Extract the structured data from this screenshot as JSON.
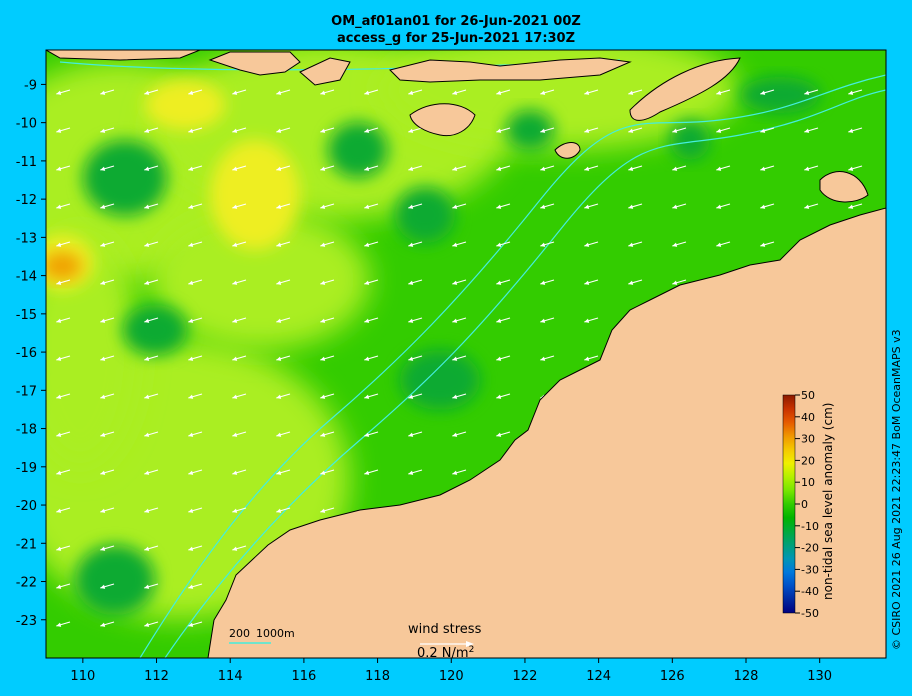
{
  "title": {
    "line1": "OM_af01an01 for 26-Jun-2021 00Z",
    "line2": "access_g for 25-Jun-2021 17:30Z"
  },
  "axes": {
    "x_ticks": [
      "110",
      "112",
      "114",
      "116",
      "118",
      "120",
      "122",
      "124",
      "126",
      "128",
      "130"
    ],
    "y_ticks": [
      "-9",
      "-10",
      "-11",
      "-12",
      "-13",
      "-14",
      "-15",
      "-16",
      "-17",
      "-18",
      "-19",
      "-20",
      "-21",
      "-22",
      "-23"
    ]
  },
  "map": {
    "lon_range": [
      109,
      131.8
    ],
    "lat_range": [
      -24,
      -8.1
    ],
    "colors": {
      "ocean_base": "#33cc00",
      "ocean_light": "#aaee22",
      "ocean_yellow": "#eeee22",
      "ocean_dark": "#11aa33",
      "land": "#f7c89a",
      "coast": "#000000",
      "bathymetry": "#44eedd",
      "arrows": "#ffffff"
    },
    "depth_legend": [
      "200",
      "1000m"
    ]
  },
  "wind_stress": {
    "label": "wind stress",
    "scale_label": "0.2 N/m",
    "superscript": "2"
  },
  "colorbar": {
    "label": "non-tidal sea level anomaly (cm)",
    "ticks": [
      "50",
      "40",
      "30",
      "20",
      "10",
      "0",
      "-10",
      "-20",
      "-30",
      "-40",
      "-50"
    ],
    "colors": [
      "#8b1a00",
      "#c83200",
      "#e65a00",
      "#f09600",
      "#f5c800",
      "#f0f000",
      "#b4f000",
      "#78e600",
      "#32cc00",
      "#00b400",
      "#00aa3c",
      "#00a078",
      "#0096b4",
      "#0078dc",
      "#0050c8",
      "#0028a0",
      "#000080"
    ]
  },
  "credit": "© CSIRO 2021  26 Aug 2021 22:23:47 BoM OceanMAPS v3"
}
